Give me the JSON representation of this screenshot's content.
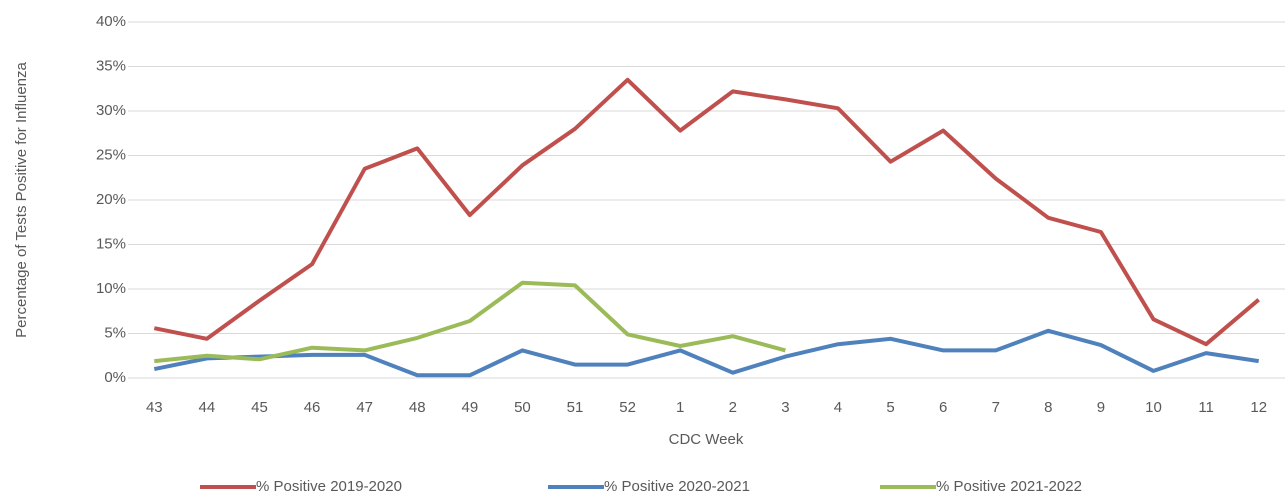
{
  "chart_data": {
    "type": "line",
    "y_label": "Percentage of Tests Positive for Influenza",
    "x_label": "CDC Week",
    "categories": [
      "43",
      "44",
      "45",
      "46",
      "47",
      "48",
      "49",
      "50",
      "51",
      "52",
      "1",
      "2",
      "3",
      "4",
      "5",
      "6",
      "7",
      "8",
      "9",
      "10",
      "11",
      "12"
    ],
    "series": [
      {
        "name": "% Positive 2019-2020",
        "color": "#c0504d",
        "values": [
          5.6,
          4.4,
          8.7,
          12.8,
          23.5,
          25.8,
          18.3,
          23.9,
          28.0,
          33.5,
          27.8,
          32.2,
          31.3,
          30.3,
          24.3,
          27.8,
          22.4,
          18.0,
          16.4,
          6.6,
          3.8,
          8.8
        ]
      },
      {
        "name": "% Positive 2020-2021",
        "color": "#4f81bd",
        "values": [
          1.0,
          2.2,
          2.4,
          2.6,
          2.6,
          0.3,
          0.3,
          3.1,
          1.5,
          1.5,
          3.1,
          0.6,
          2.4,
          3.8,
          4.4,
          3.1,
          3.1,
          5.3,
          3.7,
          0.8,
          2.8,
          1.9
        ]
      },
      {
        "name": "% Positive 2021-2022",
        "color": "#9bbb59",
        "values": [
          1.9,
          2.5,
          2.1,
          3.4,
          3.1,
          4.5,
          6.4,
          10.7,
          10.4,
          4.9,
          3.6,
          4.7,
          3.1,
          null,
          null,
          null,
          null,
          null,
          null,
          null,
          null,
          null
        ]
      }
    ],
    "ylim": [
      0,
      40
    ],
    "yticks": [
      {
        "value": 0,
        "label": "0%"
      },
      {
        "value": 5,
        "label": "5%"
      },
      {
        "value": 10,
        "label": "10%"
      },
      {
        "value": 15,
        "label": "15%"
      },
      {
        "value": 20,
        "label": "20%"
      },
      {
        "value": 25,
        "label": "25%"
      },
      {
        "value": 30,
        "label": "30%"
      },
      {
        "value": 35,
        "label": "35%"
      },
      {
        "value": 40,
        "label": "40%"
      }
    ],
    "grid": true,
    "legend": "bottom"
  }
}
